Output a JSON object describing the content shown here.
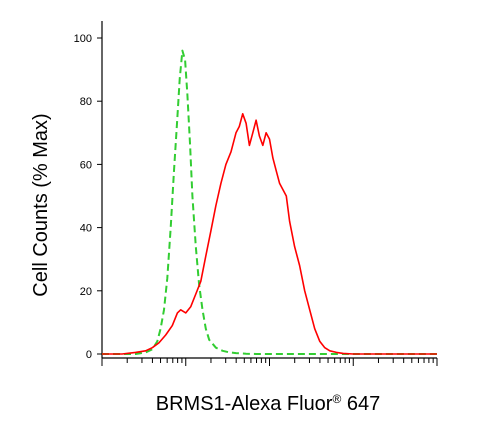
{
  "chart_data": {
    "type": "line",
    "title": "",
    "xlabel_main": "BRMS1-Alexa Fluor",
    "xlabel_sup": "®",
    "xlabel_tail": " 647",
    "ylabel": "Cell Counts (% Max)",
    "ylim": [
      0,
      100
    ],
    "xlim": [
      0,
      100
    ],
    "x_scale": "log (decades, unlabeled)",
    "grid": false,
    "legend": "none",
    "y_ticks": [
      "0",
      "20",
      "40",
      "60",
      "80",
      "100"
    ],
    "series": [
      {
        "color": "#32cd32",
        "style": "dashed",
        "x": [
          0,
          10,
          13,
          15,
          16.5,
          17.5,
          18.5,
          19.5,
          20.5,
          21.5,
          22.5,
          23.2,
          24,
          24.8,
          25.5,
          26.3,
          27,
          28,
          29,
          30,
          31,
          32,
          34,
          36,
          38,
          40,
          43,
          46,
          60,
          100
        ],
        "y": [
          0,
          0,
          0.5,
          1.5,
          4,
          8,
          14,
          24,
          40,
          58,
          75,
          87,
          96,
          93,
          82,
          66,
          50,
          34,
          22,
          14,
          8,
          4.5,
          2,
          1,
          0.5,
          0.3,
          0.1,
          0,
          0,
          0
        ]
      },
      {
        "color": "#ff0000",
        "style": "solid",
        "x": [
          0,
          6,
          10,
          13,
          15,
          17,
          19,
          21,
          22.5,
          23.5,
          25,
          26.5,
          28,
          29.5,
          31,
          32.5,
          34,
          35.5,
          37,
          38.5,
          40,
          41,
          42,
          43,
          44,
          45,
          46,
          47,
          48,
          49,
          50,
          51,
          52,
          53,
          55,
          56,
          57.5,
          59,
          60.5,
          62,
          63.5,
          65,
          66.5,
          68,
          70,
          72,
          75,
          80,
          85,
          90,
          95,
          100
        ],
        "y": [
          0,
          0,
          0.5,
          1,
          2,
          3.5,
          6,
          9,
          13,
          14,
          13,
          15,
          19,
          23,
          31,
          39,
          47,
          54,
          60,
          64,
          70,
          72,
          76,
          73,
          66,
          70,
          74,
          69,
          66,
          70,
          68,
          62,
          58,
          54,
          50,
          42,
          34,
          28,
          20,
          14,
          8,
          4,
          2,
          1,
          0.5,
          0.2,
          0,
          0,
          0,
          0,
          0,
          0
        ]
      }
    ]
  }
}
